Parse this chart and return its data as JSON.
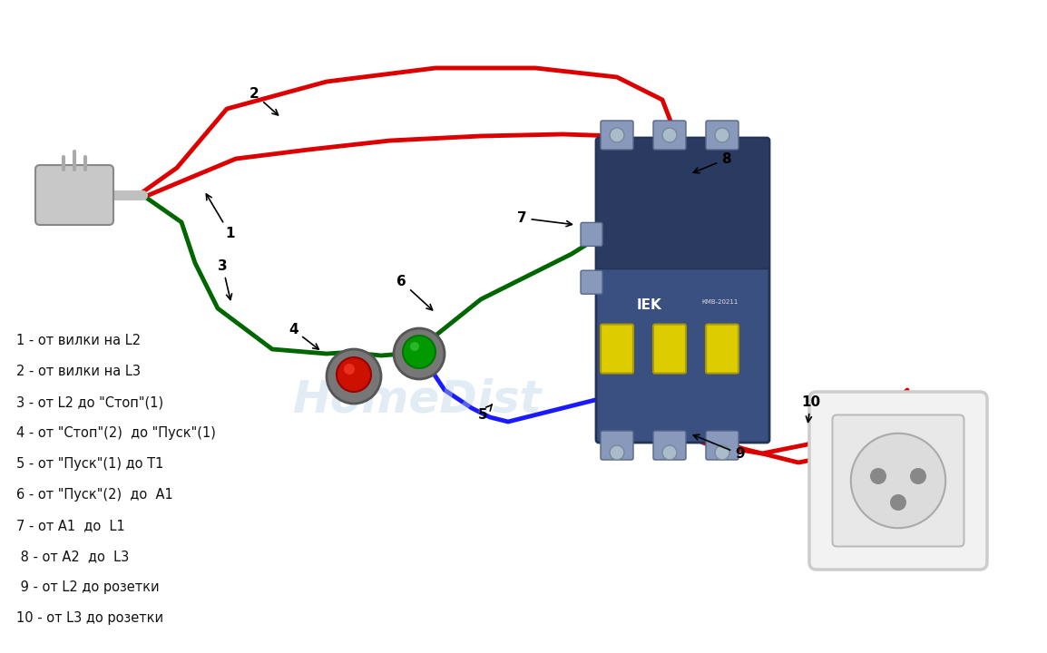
{
  "bg_color": "#ffffff",
  "legend_items": [
    "1 - от вилки на L2",
    "2 - от вилки на L3",
    "3 - от L2 до \"Стоп\"(1)",
    "4 - от \"Стоп\"(2)  до \"Пуск\"(1)",
    "5 - от \"Пуск\"(1) до Т1",
    "6 - от \"Пуск\"(2)  до  А1",
    "7 - от А1  до  L1",
    " 8 - от А2  до  L3",
    " 9 - от L2 до розетки",
    "10 - от L3 до розетки"
  ],
  "watermark_color": "#b8d0e8",
  "watermark_alpha": 0.4
}
